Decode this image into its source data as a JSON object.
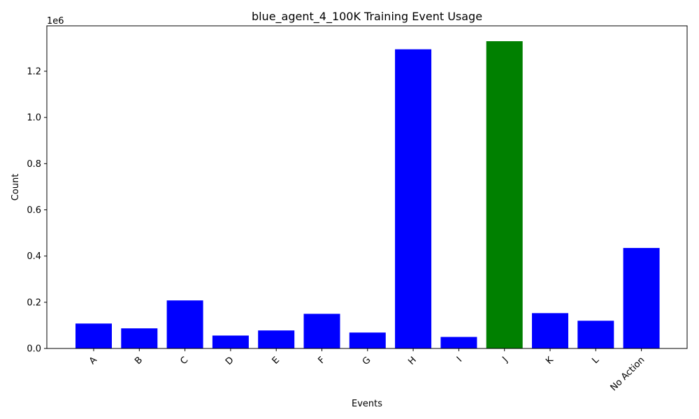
{
  "chart_data": {
    "type": "bar",
    "title": "blue_agent_4_100K Training Event Usage",
    "xlabel": "Events",
    "ylabel": "Count",
    "y_offset_label": "1e6",
    "categories": [
      "A",
      "B",
      "C",
      "D",
      "E",
      "F",
      "G",
      "H",
      "I",
      "J",
      "K",
      "L",
      "No Action"
    ],
    "values": [
      108000,
      87000,
      208000,
      56000,
      78000,
      150000,
      69000,
      1295000,
      50000,
      1330000,
      153000,
      120000,
      435000
    ],
    "colors": [
      "#0000ff",
      "#0000ff",
      "#0000ff",
      "#0000ff",
      "#0000ff",
      "#0000ff",
      "#0000ff",
      "#0000ff",
      "#0000ff",
      "#008000",
      "#0000ff",
      "#0000ff",
      "#0000ff"
    ],
    "yticks": [
      0.0,
      0.2,
      0.4,
      0.6,
      0.8,
      1.0,
      1.2
    ],
    "ytick_labels": [
      "0.0",
      "0.2",
      "0.4",
      "0.6",
      "0.8",
      "1.0",
      "1.2"
    ],
    "ylim": [
      0,
      1396500
    ],
    "grid": false,
    "legend": "none",
    "xtick_rotation": 45
  }
}
